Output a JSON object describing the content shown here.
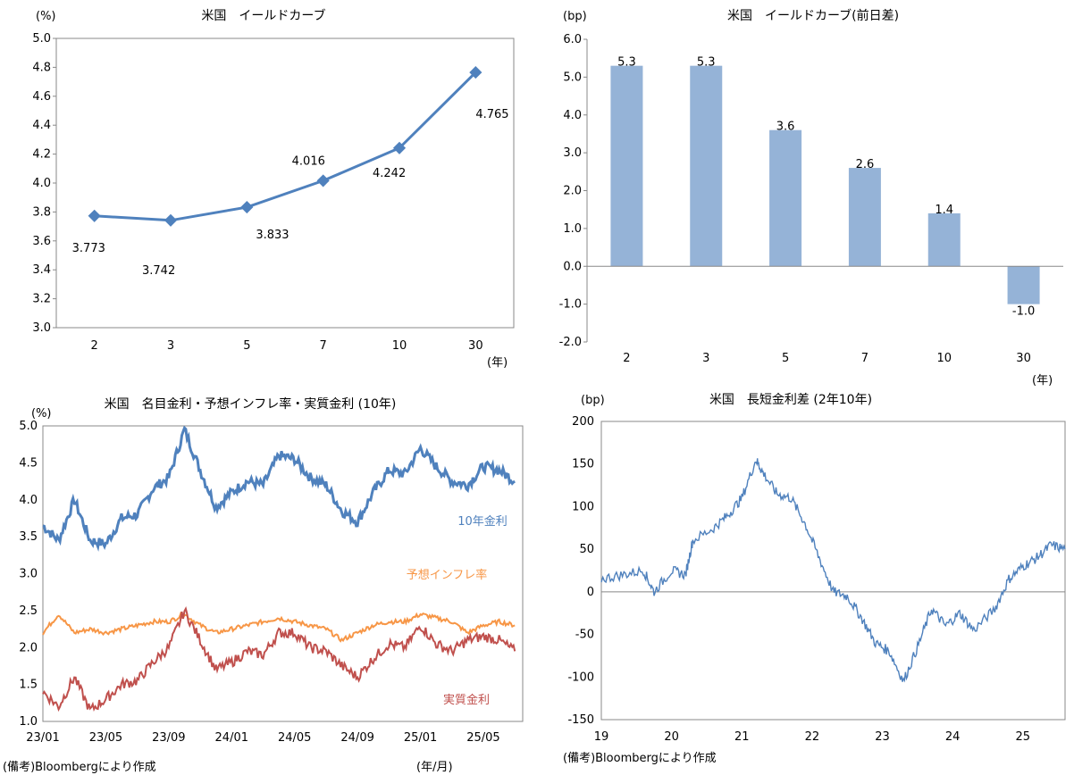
{
  "notes": {
    "source_left": "(備考)Bloombergにより作成",
    "source_right": "(備考)Bloombergにより作成",
    "date_unit": "(年/月)"
  },
  "chart_data": [
    {
      "type": "line",
      "title": "米国　イールドカーブ",
      "yunit": "(%)",
      "xunit": "(年)",
      "categories": [
        "2",
        "3",
        "5",
        "7",
        "10",
        "30"
      ],
      "values": [
        3.773,
        3.742,
        3.833,
        4.016,
        4.242,
        4.765
      ],
      "value_labels": [
        "3.773",
        "3.742",
        "3.833",
        "4.016",
        "4.242",
        "4.765"
      ],
      "ylim": [
        3.0,
        5.0
      ],
      "yticks": [
        "3.0",
        "3.2",
        "3.4",
        "3.6",
        "3.8",
        "4.0",
        "4.2",
        "4.4",
        "4.6",
        "4.8",
        "5.0"
      ],
      "color": "#4f81bd"
    },
    {
      "type": "bar",
      "title": "米国　イールドカーブ(前日差)",
      "yunit": "(bp)",
      "xunit": "(年)",
      "categories": [
        "2",
        "3",
        "5",
        "7",
        "10",
        "30"
      ],
      "values": [
        5.3,
        5.3,
        3.6,
        2.6,
        1.4,
        -1.0
      ],
      "value_labels": [
        "5.3",
        "5.3",
        "3.6",
        "2.6",
        "1.4",
        "-1.0"
      ],
      "ylim": [
        -2.0,
        6.0
      ],
      "yticks": [
        "-2.0",
        "-1.0",
        "0.0",
        "1.0",
        "2.0",
        "3.0",
        "4.0",
        "5.0",
        "6.0"
      ],
      "color": "#95b3d7"
    },
    {
      "type": "line",
      "title": "米国　名目金利・予想インフレ率・実質金利 (10年)",
      "yunit": "(%)",
      "ylim": [
        1.0,
        5.0
      ],
      "yticks": [
        "1.0",
        "1.5",
        "2.0",
        "2.5",
        "3.0",
        "3.5",
        "4.0",
        "4.5",
        "5.0"
      ],
      "x_ticks": [
        "23/01",
        "23/05",
        "23/09",
        "24/01",
        "24/05",
        "24/09",
        "25/01",
        "25/05"
      ],
      "x_range": [
        "2023-01",
        "2025-07"
      ],
      "series": [
        {
          "name": "10年金利",
          "color": "#4f81bd",
          "x": [
            "2023-01",
            "2023-02",
            "2023-03",
            "2023-04",
            "2023-05",
            "2023-06",
            "2023-07",
            "2023-08",
            "2023-09",
            "2023-10",
            "2023-11",
            "2023-12",
            "2024-01",
            "2024-02",
            "2024-03",
            "2024-04",
            "2024-05",
            "2024-06",
            "2024-07",
            "2024-08",
            "2024-09",
            "2024-10",
            "2024-11",
            "2024-12",
            "2025-01",
            "2025-02",
            "2025-03",
            "2025-04",
            "2025-05",
            "2025-06",
            "2025-07"
          ],
          "values": [
            3.65,
            3.45,
            4.0,
            3.45,
            3.4,
            3.75,
            3.8,
            4.15,
            4.3,
            4.95,
            4.4,
            3.9,
            4.1,
            4.25,
            4.2,
            4.6,
            4.55,
            4.3,
            4.2,
            3.85,
            3.7,
            4.1,
            4.4,
            4.35,
            4.7,
            4.45,
            4.25,
            4.2,
            4.45,
            4.4,
            4.25
          ]
        },
        {
          "name": "予想インフレ率",
          "color": "#f79646",
          "x": [
            "2023-01",
            "2023-02",
            "2023-03",
            "2023-04",
            "2023-05",
            "2023-06",
            "2023-07",
            "2023-08",
            "2023-09",
            "2023-10",
            "2023-11",
            "2023-12",
            "2024-01",
            "2024-02",
            "2024-03",
            "2024-04",
            "2024-05",
            "2024-06",
            "2024-07",
            "2024-08",
            "2024-09",
            "2024-10",
            "2024-11",
            "2024-12",
            "2025-01",
            "2025-02",
            "2025-03",
            "2025-04",
            "2025-05",
            "2025-06",
            "2025-07"
          ],
          "values": [
            2.2,
            2.45,
            2.2,
            2.25,
            2.2,
            2.25,
            2.3,
            2.35,
            2.35,
            2.45,
            2.3,
            2.2,
            2.25,
            2.3,
            2.35,
            2.4,
            2.35,
            2.3,
            2.25,
            2.1,
            2.2,
            2.3,
            2.35,
            2.35,
            2.45,
            2.4,
            2.35,
            2.2,
            2.3,
            2.35,
            2.3
          ]
        },
        {
          "name": "実質金利",
          "color": "#c0504d",
          "x": [
            "2023-01",
            "2023-02",
            "2023-03",
            "2023-04",
            "2023-05",
            "2023-06",
            "2023-07",
            "2023-08",
            "2023-09",
            "2023-10",
            "2023-11",
            "2023-12",
            "2024-01",
            "2024-02",
            "2024-03",
            "2024-04",
            "2024-05",
            "2024-06",
            "2024-07",
            "2024-08",
            "2024-09",
            "2024-10",
            "2024-11",
            "2024-12",
            "2025-01",
            "2025-02",
            "2025-03",
            "2025-04",
            "2025-05",
            "2025-06",
            "2025-07"
          ],
          "values": [
            1.4,
            1.2,
            1.6,
            1.15,
            1.3,
            1.5,
            1.55,
            1.8,
            2.0,
            2.5,
            2.1,
            1.7,
            1.8,
            1.95,
            1.9,
            2.2,
            2.2,
            2.0,
            1.95,
            1.75,
            1.6,
            1.85,
            2.05,
            2.0,
            2.3,
            2.05,
            1.95,
            2.1,
            2.15,
            2.1,
            1.95
          ]
        }
      ]
    },
    {
      "type": "line",
      "title": "米国　長短金利差 (2年10年)",
      "yunit": "(bp)",
      "ylim": [
        -150,
        200
      ],
      "yticks": [
        "-150",
        "-100",
        "-50",
        "0",
        "50",
        "100",
        "150",
        "200"
      ],
      "x_ticks": [
        "19",
        "20",
        "21",
        "22",
        "23",
        "24",
        "25"
      ],
      "x_range": [
        2019.0,
        2025.6
      ],
      "series": [
        {
          "name": "",
          "color": "#4f81bd",
          "x": [
            2019.0,
            2019.3,
            2019.6,
            2019.75,
            2020.0,
            2020.2,
            2020.3,
            2020.6,
            2020.8,
            2021.0,
            2021.2,
            2021.3,
            2021.5,
            2021.7,
            2021.9,
            2022.1,
            2022.3,
            2022.5,
            2022.7,
            2022.9,
            2023.1,
            2023.3,
            2023.5,
            2023.7,
            2023.9,
            2024.1,
            2024.3,
            2024.6,
            2024.8,
            2025.0,
            2025.2,
            2025.4,
            2025.6
          ],
          "values": [
            15,
            20,
            25,
            0,
            25,
            20,
            60,
            75,
            90,
            110,
            155,
            140,
            115,
            110,
            80,
            40,
            0,
            -5,
            -30,
            -60,
            -70,
            -105,
            -65,
            -20,
            -40,
            -25,
            -45,
            -20,
            15,
            30,
            40,
            55,
            50
          ]
        }
      ]
    }
  ]
}
